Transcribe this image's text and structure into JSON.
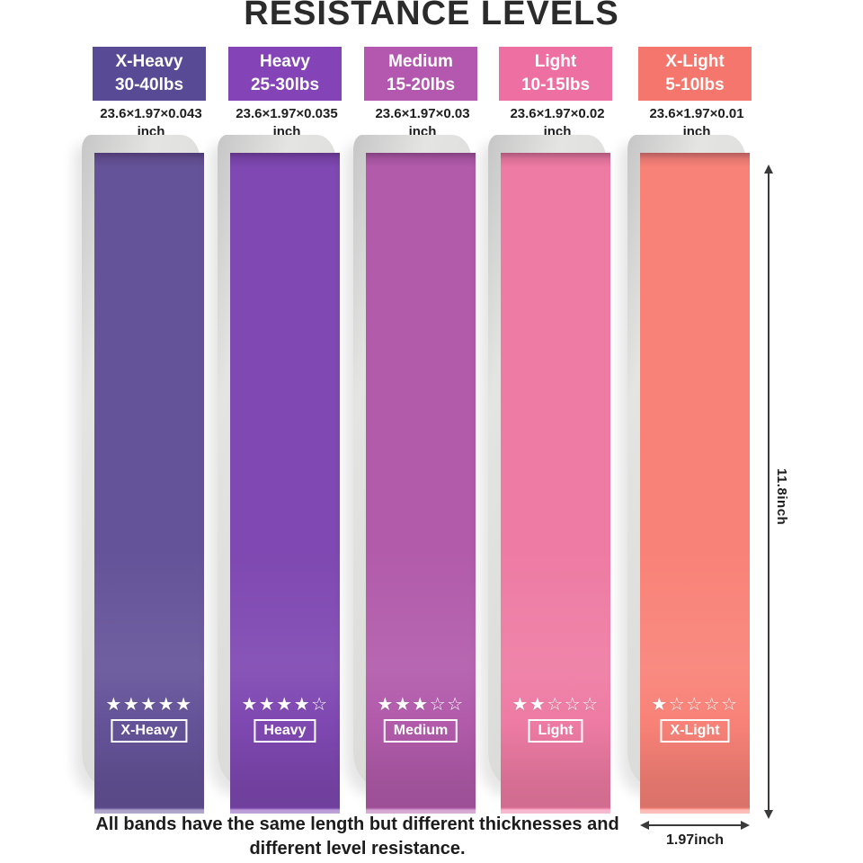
{
  "title": "RESISTANCE LEVELS",
  "bands": [
    {
      "name": "X-Heavy",
      "weight": "30-40lbs",
      "dimensions": "23.6×1.97×0.043",
      "dim_unit": "inch",
      "stars_filled": 5,
      "stars_total": 5,
      "tag": "X-Heavy",
      "header_color": "#594a95",
      "band_color": "#655399"
    },
    {
      "name": "Heavy",
      "weight": "25-30lbs",
      "dimensions": "23.6×1.97×0.035",
      "dim_unit": "inch",
      "stars_filled": 4,
      "stars_total": 5,
      "tag": "Heavy",
      "header_color": "#8444b7",
      "band_color": "#7f48b2"
    },
    {
      "name": "Medium",
      "weight": "15-20lbs",
      "dimensions": "23.6×1.97×0.03",
      "dim_unit": "inch",
      "stars_filled": 3,
      "stars_total": 5,
      "tag": "Medium",
      "header_color": "#b457ae",
      "band_color": "#b25bab"
    },
    {
      "name": "Light",
      "weight": "10-15lbs",
      "dimensions": "23.6×1.97×0.02",
      "dim_unit": "inch",
      "stars_filled": 2,
      "stars_total": 5,
      "tag": "Light",
      "header_color": "#ee6fa1",
      "band_color": "#ee7ba3"
    },
    {
      "name": "X-Light",
      "weight": "5-10lbs",
      "dimensions": "23.6×1.97×0.01",
      "dim_unit": "inch",
      "stars_filled": 1,
      "stars_total": 5,
      "tag": "X-Light",
      "header_color": "#f4766c",
      "band_color": "#f98278"
    }
  ],
  "measurements": {
    "length_label": "11.8inch",
    "width_label": "1.97inch"
  },
  "caption": {
    "line1": "All bands have the same length but different thicknesses and",
    "line2": "different level resistance."
  },
  "icons": {
    "star_filled": "★",
    "star_empty": "☆"
  }
}
